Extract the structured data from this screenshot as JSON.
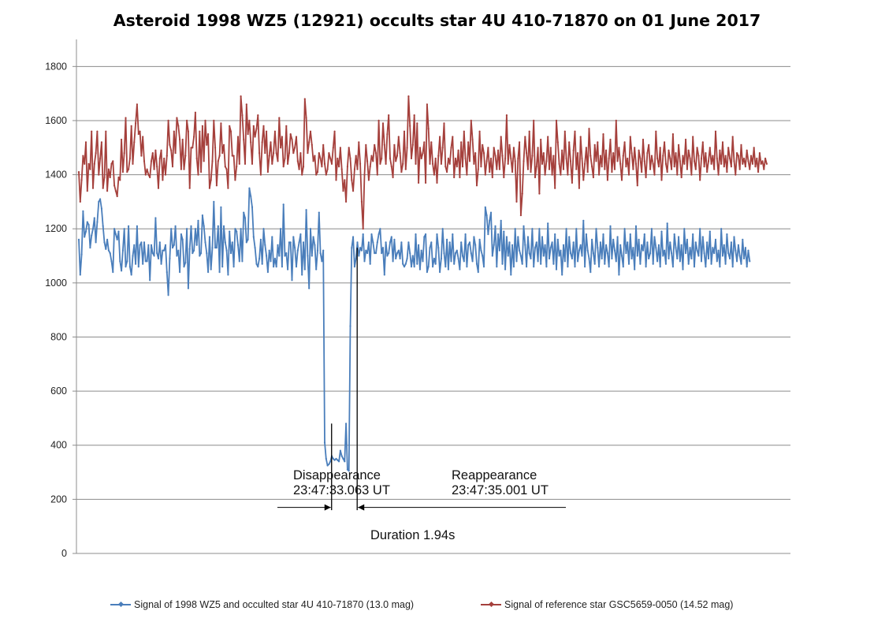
{
  "chart_data": {
    "type": "line",
    "title": "Asteroid 1998 WZ5 (12921) occults star 4U 410-71870 on 01 June 2017",
    "xlabel": "",
    "ylabel": "",
    "ylim": [
      0,
      1900
    ],
    "yticks": [
      0,
      200,
      400,
      600,
      800,
      1000,
      1200,
      1400,
      1600,
      1800
    ],
    "grid": "horizontal",
    "legend_position": "bottom",
    "sample_count": 500,
    "series": [
      {
        "name": "Signal of 1998 WZ5 and occulted star 4U 410-71870 (13.0 mag)",
        "color": "#4a7ebb",
        "values": [
          1160,
          1030,
          1105,
          1265,
          1170,
          1190,
          1225,
          1215,
          1130,
          1175,
          1200,
          1240,
          1150,
          1225,
          1300,
          1310,
          1275,
          1210,
          1150,
          1125,
          1160,
          1120,
          1110,
          1080,
          1040,
          1200,
          1180,
          1160,
          1190,
          1080,
          1045,
          1120,
          1200,
          1060,
          1080,
          1210,
          1060,
          1030,
          1100,
          1140,
          1070,
          1210,
          1060,
          1140,
          1150,
          1070,
          1150,
          1080,
          1080,
          1140,
          1010,
          1140,
          1110,
          1100,
          1240,
          1110,
          1090,
          1150,
          1070,
          1120,
          1120,
          1140,
          1040,
          955,
          1090,
          1200,
          1130,
          1140,
          1210,
          1100,
          1120,
          1040,
          1180,
          1160,
          1060,
          1075,
          1200,
          980,
          1125,
          1210,
          1110,
          1120,
          1200,
          1140,
          1230,
          1100,
          1110,
          1250,
          1210,
          1150,
          1110,
          1040,
          1170,
          1050,
          1130,
          1300,
          1130,
          1130,
          1210,
          1040,
          1280,
          1060,
          1210,
          1150,
          1120,
          1030,
          1190,
          1110,
          1150,
          1060,
          1200,
          1190,
          1140,
          1080,
          1200,
          1080,
          1260,
          1240,
          1150,
          1160,
          1350,
          1320,
          1280,
          1170,
          1130,
          1070,
          1060,
          1090,
          1160,
          1070,
          1200,
          1140,
          1100,
          1040,
          1120,
          1080,
          1170,
          1060,
          1090,
          1060,
          1140,
          1100,
          1200,
          1060,
          1290,
          1100,
          1110,
          1050,
          1150,
          1150,
          1010,
          1170,
          1130,
          1060,
          1120,
          1150,
          1180,
          1030,
          1150,
          1050,
          1270,
          1100,
          980,
          1200,
          1100,
          1170,
          1140,
          1050,
          1120,
          1260,
          1110,
          1080,
          1120,
          410,
          350,
          325,
          330,
          340,
          360,
          350,
          345,
          350,
          345,
          340,
          380,
          360,
          350,
          340,
          480,
          310,
          305,
          840,
          1130,
          1170,
          1060,
          1090,
          1150,
          1100,
          1130,
          1120,
          1180,
          1080,
          1120,
          1110,
          1150,
          1070,
          1180,
          1150,
          1110,
          1110,
          1150,
          1180,
          1200,
          1110,
          1130,
          1030,
          1150,
          1100,
          1110,
          1150,
          1170,
          1080,
          1160,
          1090,
          1110,
          1120,
          1090,
          1150,
          1070,
          1060,
          1070,
          1090,
          1150,
          1110,
          1060,
          1100,
          1060,
          1180,
          1070,
          1140,
          1050,
          1120,
          1080,
          1170,
          1180,
          1040,
          1060,
          1130,
          1150,
          1060,
          1090,
          1070,
          1180,
          1130,
          1040,
          1090,
          1200,
          1110,
          1060,
          1160,
          1050,
          1150,
          1080,
          1180,
          1070,
          1110,
          1120,
          1090,
          1050,
          1150,
          1100,
          1080,
          1180,
          1060,
          1140,
          1150,
          1110,
          1080,
          1170,
          1140,
          1070,
          1040,
          1160,
          1120,
          1100,
          1060,
          1280,
          1250,
          1180,
          1230,
          1260,
          1100,
          1140,
          1210,
          1060,
          1180,
          1120,
          1230,
          1070,
          1190,
          1050,
          1170,
          1100,
          1150,
          1030,
          1140,
          1060,
          1200,
          1080,
          1170,
          1120,
          1100,
          1070,
          1210,
          1140,
          1060,
          1170,
          1110,
          1090,
          1200,
          1060,
          1130,
          1150,
          1080,
          1200,
          1070,
          1170,
          1100,
          1140,
          1060,
          1220,
          1090,
          1130,
          1150,
          1070,
          1180,
          1050,
          1160,
          1100,
          1120,
          1030,
          1140,
          1080,
          1200,
          1060,
          1170,
          1110,
          1090,
          1150,
          1060,
          1200,
          1080,
          1120,
          1140,
          1100,
          1230,
          1060,
          1180,
          1120,
          1090,
          1040,
          1160,
          1110,
          1070,
          1200,
          1130,
          1060,
          1150,
          1090,
          1180,
          1070,
          1140,
          1110,
          1060,
          1210,
          1090,
          1160,
          1120,
          1080,
          1170,
          1030,
          1140,
          1100,
          1060,
          1200,
          1110,
          1150,
          1070,
          1180,
          1090,
          1130,
          1050,
          1210,
          1100,
          1160,
          1070,
          1140,
          1120,
          1180,
          1060,
          1150,
          1090,
          1110,
          1200,
          1070,
          1170,
          1130,
          1080,
          1140,
          1060,
          1190,
          1100,
          1120,
          1070,
          1220,
          1090,
          1150,
          1110,
          1060,
          1180,
          1130,
          1090,
          1170,
          1080,
          1140,
          1050,
          1200,
          1110,
          1160,
          1070,
          1130,
          1090,
          1180,
          1060,
          1150,
          1120,
          1100,
          1200,
          1080,
          1170,
          1110,
          1060,
          1150,
          1090,
          1190,
          1070,
          1130,
          1110,
          1160,
          1080,
          1120,
          1060,
          1200,
          1100,
          1140,
          1070,
          1180,
          1110,
          1090,
          1150,
          1060,
          1170,
          1120,
          1080,
          1140,
          1100,
          1070,
          1160,
          1090,
          1130,
          1060,
          1120,
          1080
        ]
      },
      {
        "name": "Signal of reference star GSC5659-0050 (14.52 mag)",
        "color": "#a5403c",
        "values": [
          1410,
          1300,
          1380,
          1470,
          1440,
          1520,
          1340,
          1440,
          1420,
          1560,
          1350,
          1440,
          1480,
          1560,
          1400,
          1460,
          1520,
          1350,
          1390,
          1560,
          1340,
          1420,
          1390,
          1440,
          1450,
          1360,
          1340,
          1320,
          1390,
          1380,
          1530,
          1410,
          1480,
          1610,
          1410,
          1420,
          1460,
          1580,
          1440,
          1520,
          1590,
          1660,
          1550,
          1560,
          1470,
          1540,
          1450,
          1400,
          1420,
          1400,
          1390,
          1450,
          1480,
          1420,
          1490,
          1430,
          1350,
          1460,
          1490,
          1380,
          1460,
          1400,
          1470,
          1600,
          1510,
          1490,
          1430,
          1560,
          1480,
          1610,
          1580,
          1530,
          1420,
          1530,
          1420,
          1470,
          1600,
          1560,
          1350,
          1500,
          1500,
          1540,
          1630,
          1460,
          1400,
          1560,
          1410,
          1580,
          1450,
          1600,
          1510,
          1550,
          1350,
          1380,
          1450,
          1600,
          1500,
          1360,
          1450,
          1470,
          1590,
          1480,
          1510,
          1430,
          1420,
          1350,
          1580,
          1560,
          1470,
          1470,
          1380,
          1430,
          1540,
          1440,
          1690,
          1620,
          1530,
          1440,
          1660,
          1550,
          1600,
          1520,
          1440,
          1580,
          1540,
          1570,
          1620,
          1480,
          1400,
          1520,
          1580,
          1480,
          1560,
          1410,
          1470,
          1520,
          1440,
          1480,
          1560,
          1480,
          1450,
          1610,
          1500,
          1540,
          1430,
          1460,
          1580,
          1440,
          1480,
          1550,
          1530,
          1480,
          1500,
          1540,
          1450,
          1420,
          1480,
          1400,
          1430,
          1680,
          1610,
          1480,
          1520,
          1560,
          1510,
          1450,
          1470,
          1400,
          1410,
          1480,
          1460,
          1430,
          1510,
          1440,
          1400,
          1420,
          1480,
          1460,
          1440,
          1500,
          1560,
          1380,
          1460,
          1430,
          1500,
          1420,
          1340,
          1380,
          1300,
          1430,
          1500,
          1460,
          1380,
          1340,
          1420,
          1470,
          1420,
          1520,
          1440,
          1300,
          1200,
          1400,
          1510,
          1450,
          1380,
          1430,
          1470,
          1450,
          1510,
          1480,
          1400,
          1600,
          1440,
          1460,
          1590,
          1510,
          1440,
          1550,
          1620,
          1460,
          1430,
          1390,
          1510,
          1450,
          1470,
          1540,
          1480,
          1410,
          1440,
          1560,
          1420,
          1500,
          1690,
          1580,
          1460,
          1510,
          1620,
          1440,
          1590,
          1370,
          1500,
          1460,
          1480,
          1520,
          1370,
          1660,
          1570,
          1440,
          1520,
          1440,
          1400,
          1460,
          1370,
          1470,
          1540,
          1440,
          1500,
          1590,
          1430,
          1410,
          1460,
          1440,
          1500,
          1540,
          1390,
          1460,
          1430,
          1490,
          1390,
          1520,
          1430,
          1560,
          1460,
          1400,
          1520,
          1450,
          1600,
          1530,
          1440,
          1480,
          1360,
          1420,
          1560,
          1430,
          1510,
          1480,
          1400,
          1450,
          1500,
          1410,
          1460,
          1390,
          1500,
          1470,
          1420,
          1490,
          1420,
          1540,
          1470,
          1390,
          1460,
          1620,
          1440,
          1510,
          1460,
          1410,
          1500,
          1450,
          1300,
          1460,
          1520,
          1250,
          1330,
          1450,
          1540,
          1480,
          1420,
          1560,
          1410,
          1470,
          1600,
          1390,
          1430,
          1500,
          1330,
          1530,
          1440,
          1480,
          1400,
          1450,
          1540,
          1420,
          1500,
          1400,
          1470,
          1350,
          1600,
          1520,
          1440,
          1400,
          1490,
          1420,
          1560,
          1460,
          1400,
          1520,
          1450,
          1370,
          1490,
          1560,
          1420,
          1480,
          1350,
          1540,
          1460,
          1380,
          1440,
          1500,
          1410,
          1570,
          1470,
          1430,
          1390,
          1510,
          1450,
          1520,
          1400,
          1470,
          1430,
          1550,
          1420,
          1490,
          1380,
          1460,
          1530,
          1410,
          1480,
          1420,
          1600,
          1450,
          1500,
          1440,
          1380,
          1470,
          1520,
          1430,
          1460,
          1400,
          1540,
          1480,
          1420,
          1500,
          1440,
          1360,
          1490,
          1460,
          1410,
          1530,
          1450,
          1390,
          1480,
          1510,
          1420,
          1470,
          1440,
          1400,
          1560,
          1460,
          1430,
          1500,
          1380,
          1470,
          1520,
          1440,
          1410,
          1490,
          1460,
          1420,
          1550,
          1430,
          1480,
          1400,
          1510,
          1450,
          1390,
          1470,
          1440,
          1530,
          1420,
          1490,
          1460,
          1400,
          1540,
          1450,
          1420,
          1500,
          1470,
          1380,
          1460,
          1520,
          1430,
          1480,
          1410,
          1450,
          1500,
          1440,
          1470,
          1420,
          1560,
          1460,
          1400,
          1490,
          1440,
          1520,
          1430,
          1470,
          1410,
          1500,
          1460,
          1430,
          1540,
          1450,
          1400,
          1480,
          1470,
          1420,
          1510,
          1440,
          1460,
          1430,
          1490,
          1450,
          1420,
          1470,
          1440,
          1500,
          1430,
          1460,
          1410,
          1480,
          1440,
          1450,
          1420,
          1460,
          1440
        ]
      }
    ],
    "annotations": {
      "disappearance_label": "Disappearance",
      "disappearance_time": "23:47:33.063 UT",
      "reappearance_label": "Reappearance",
      "reappearance_time": "23:47:35.001 UT",
      "duration": "Duration 1.94s",
      "disappearance_sample": 177,
      "reappearance_sample": 195
    }
  }
}
